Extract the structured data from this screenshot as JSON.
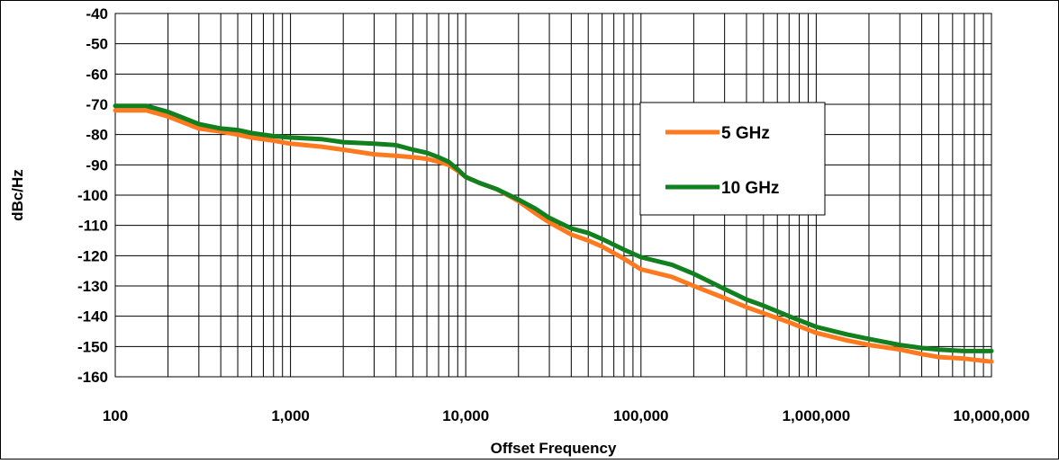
{
  "chart_data": {
    "type": "line",
    "title": "",
    "xlabel": "Offset Frequency",
    "ylabel": "dBc/Hz",
    "xscale": "log",
    "xlim": [
      100,
      10000000
    ],
    "ylim": [
      -160,
      -40
    ],
    "grid": true,
    "legend_position": "center-right",
    "x_tick_labels": [
      "100",
      "1,000",
      "10,000",
      "100,000",
      "1,000,000",
      "10,000,000"
    ],
    "y_tick_labels": [
      "-40",
      "-50",
      "-60",
      "-70",
      "-80",
      "-90",
      "-100",
      "-110",
      "-120",
      "-130",
      "-140",
      "-150",
      "-160"
    ],
    "series": [
      {
        "name": "5 GHz",
        "color": "#ff7a1f",
        "x": [
          100,
          150,
          200,
          300,
          400,
          500,
          600,
          800,
          1000,
          1500,
          2000,
          3000,
          4000,
          5000,
          6000,
          7000,
          8000,
          9000,
          10000,
          12000,
          15000,
          20000,
          25000,
          30000,
          40000,
          50000,
          60000,
          80000,
          100000,
          150000,
          200000,
          300000,
          400000,
          500000,
          700000,
          1000000,
          1500000,
          2000000,
          3000000,
          4000000,
          5000000,
          7000000,
          10000000
        ],
        "values": [
          -72,
          -72,
          -74,
          -78,
          -79,
          -80,
          -81,
          -82,
          -83,
          -84,
          -85,
          -86.5,
          -87,
          -87.5,
          -88,
          -89,
          -90,
          -92,
          -94,
          -96,
          -98,
          -102,
          -106,
          -109,
          -113,
          -115,
          -117,
          -121,
          -124.5,
          -127,
          -130,
          -134,
          -137,
          -139,
          -142,
          -145.5,
          -148,
          -149.5,
          -151,
          -152.5,
          -153.5,
          -154,
          -155
        ]
      },
      {
        "name": "10 GHz",
        "color": "#13801f",
        "x": [
          100,
          150,
          200,
          300,
          400,
          500,
          600,
          800,
          1000,
          1500,
          2000,
          3000,
          4000,
          5000,
          6000,
          7000,
          8000,
          9000,
          10000,
          12000,
          15000,
          20000,
          25000,
          30000,
          40000,
          50000,
          60000,
          80000,
          100000,
          150000,
          200000,
          300000,
          400000,
          500000,
          700000,
          1000000,
          1500000,
          2000000,
          3000000,
          4000000,
          5000000,
          7000000,
          10000000
        ],
        "values": [
          -70.5,
          -70.5,
          -72.5,
          -76.5,
          -78,
          -78.5,
          -79.5,
          -80.5,
          -81,
          -81.5,
          -82.5,
          -83,
          -83.5,
          -85,
          -86,
          -87.5,
          -89,
          -91.5,
          -94,
          -96,
          -98,
          -101.5,
          -104.5,
          -107.5,
          -111,
          -112.5,
          -114.5,
          -118,
          -120.5,
          -123,
          -126,
          -131,
          -134.5,
          -136.5,
          -140,
          -143.5,
          -146,
          -147.5,
          -149.5,
          -150.5,
          -151,
          -151.5,
          -151.5
        ]
      }
    ]
  }
}
